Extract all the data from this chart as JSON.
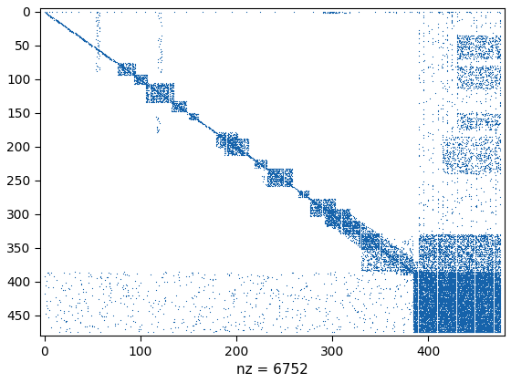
{
  "nz": 6752,
  "matrix_size": 476,
  "xlabel": "nz = 6752",
  "marker_color": "#1663ab",
  "marker_size": 0.8,
  "xlim": [
    -5,
    480
  ],
  "ylim": [
    480,
    -5
  ],
  "xticks": [
    0,
    100,
    200,
    300,
    400
  ],
  "yticks": [
    0,
    50,
    100,
    150,
    200,
    250,
    300,
    350,
    400,
    450
  ],
  "figsize": [
    5.6,
    4.2
  ],
  "dpi": 100
}
